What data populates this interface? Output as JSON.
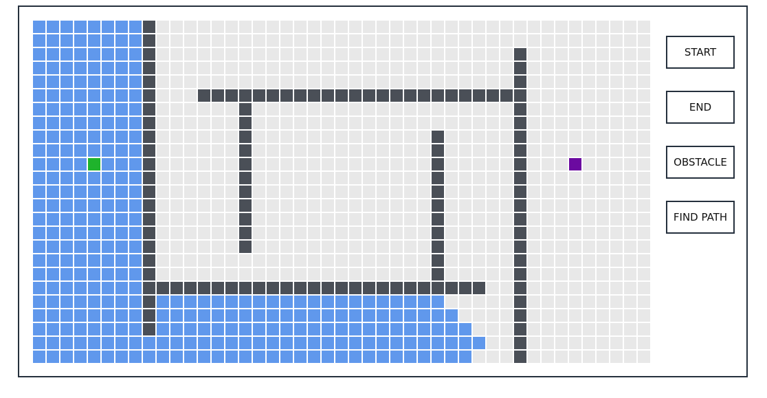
{
  "controls": {
    "start_label": "START",
    "end_label": "END",
    "obstacle_label": "OBSTACLE",
    "find_path_label": "FIND PATH"
  },
  "colors": {
    "empty": "#e8e8e8",
    "visited": "#6098ec",
    "obstacle": "#4a4f57",
    "start": "#1fb32c",
    "end": "#6b0aa0",
    "border": "#25303d"
  },
  "grid": {
    "cols": 45,
    "rows": 25,
    "start": {
      "row": 10,
      "col": 4
    },
    "end": {
      "row": 10,
      "col": 39
    },
    "visited_rows": [
      [
        0,
        7
      ],
      [
        0,
        7
      ],
      [
        0,
        7
      ],
      [
        0,
        7
      ],
      [
        0,
        7
      ],
      [
        0,
        7
      ],
      [
        0,
        7
      ],
      [
        0,
        7
      ],
      [
        0,
        7
      ],
      [
        0,
        7
      ],
      [
        0,
        7
      ],
      [
        0,
        7
      ],
      [
        0,
        7
      ],
      [
        0,
        7
      ],
      [
        0,
        7
      ],
      [
        0,
        7
      ],
      [
        0,
        7
      ],
      [
        0,
        7
      ],
      [
        0,
        7
      ],
      [
        0,
        7
      ],
      [
        0,
        29
      ],
      [
        0,
        30
      ],
      [
        0,
        31
      ],
      [
        0,
        32
      ],
      [
        0,
        31
      ]
    ],
    "obstacles": [
      {
        "type": "col",
        "col": 8,
        "from": 0,
        "to": 22
      },
      {
        "type": "row",
        "row": 5,
        "from": 12,
        "to": 35
      },
      {
        "type": "col",
        "col": 35,
        "from": 2,
        "to": 24
      },
      {
        "type": "col",
        "col": 15,
        "from": 6,
        "to": 16
      },
      {
        "type": "col",
        "col": 29,
        "from": 8,
        "to": 18
      },
      {
        "type": "row",
        "row": 19,
        "from": 8,
        "to": 32
      }
    ]
  }
}
